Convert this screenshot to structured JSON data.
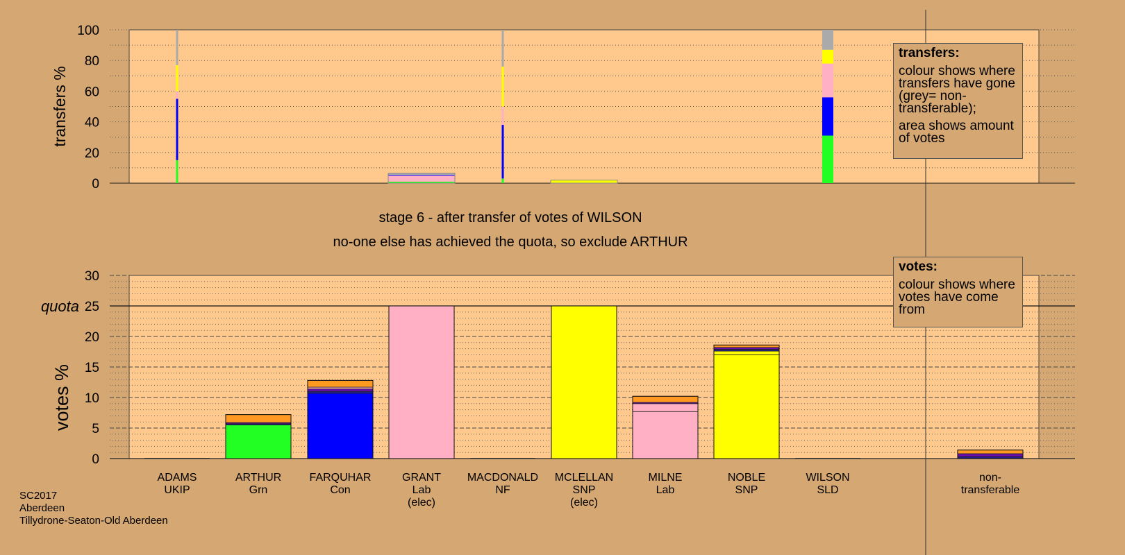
{
  "stage_caption": "stage 6 - after transfer of votes of WILSON",
  "action_caption": "no-one else has achieved the quota, so exclude ARTHUR",
  "footer": [
    "SC2017",
    "Aberdeen",
    "Tillydrone-Seaton-Old Aberdeen"
  ],
  "transfers_legend": {
    "title": "transfers:",
    "lines": [
      "colour shows where transfers have gone (grey= non-transferable);",
      "area shows amount of votes"
    ]
  },
  "votes_legend": {
    "title": "votes:",
    "lines": [
      "colour shows where votes have come from"
    ]
  },
  "colors": {
    "background": "#d4a773",
    "plot": "#ffc88c",
    "ARTHUR": "#22ff22",
    "FARQUHAR": "#0000ff",
    "GRANT": "#ffb0c4",
    "MCLELLAN": "#ffff00",
    "MILNE": "#ffb0c4",
    "NOBLE": "#ffff00",
    "WILSON": "#ff9922",
    "ADAMS": "#6a0dad",
    "MACDONALD": "#222288",
    "nontransferable": "#aaaaaa"
  },
  "chart_data": [
    {
      "type": "bar",
      "id": "transfers",
      "ylabel": "transfers %",
      "ylim": [
        0,
        100
      ],
      "yticks": [
        0,
        20,
        40,
        60,
        80,
        100
      ],
      "grid": "dotted",
      "bars": [
        {
          "candidate": "ADAMS",
          "width_votes": 0.1,
          "segments": [
            {
              "to": "ARTHUR",
              "color": "#22ff22",
              "value": 15
            },
            {
              "to": "FARQUHAR",
              "color": "#0000ff",
              "value": 40
            },
            {
              "to": "GRANT",
              "color": "#ffb0c4",
              "value": 5
            },
            {
              "to": "MCLELLAN",
              "color": "#ffff00",
              "value": 17
            },
            {
              "to": "nontransferable",
              "color": "#aaaaaa",
              "value": 23
            }
          ]
        },
        {
          "candidate": "GRANT",
          "width_votes": 6,
          "segments": [
            {
              "to": "ARTHUR",
              "color": "#22ff22",
              "value": 1
            },
            {
              "to": "MILNE",
              "color": "#ffb0c4",
              "value": 4
            },
            {
              "to": "FARQUHAR",
              "color": "#0000ff",
              "value": 0.5
            },
            {
              "to": "nontransferable",
              "color": "#aaaaaa",
              "value": 1
            }
          ]
        },
        {
          "candidate": "MACDONALD",
          "width_votes": 0.1,
          "segments": [
            {
              "to": "ARTHUR",
              "color": "#22ff22",
              "value": 3
            },
            {
              "to": "FARQUHAR",
              "color": "#0000ff",
              "value": 35
            },
            {
              "to": "GRANT",
              "color": "#ffb0c4",
              "value": 12
            },
            {
              "to": "MCLELLAN",
              "color": "#ffff00",
              "value": 26
            },
            {
              "to": "nontransferable",
              "color": "#aaaaaa",
              "value": 24
            }
          ]
        },
        {
          "candidate": "MCLELLAN",
          "width_votes": 6,
          "segments": [
            {
              "to": "NOBLE",
              "color": "#ffff00",
              "value": 2
            }
          ]
        },
        {
          "candidate": "WILSON",
          "width_votes": 1,
          "segments": [
            {
              "to": "ARTHUR",
              "color": "#22ff22",
              "value": 31
            },
            {
              "to": "FARQUHAR",
              "color": "#0000ff",
              "value": 25
            },
            {
              "to": "MILNE",
              "color": "#ffb0c4",
              "value": 22
            },
            {
              "to": "NOBLE",
              "color": "#ffff00",
              "value": 9
            },
            {
              "to": "nontransferable",
              "color": "#aaaaaa",
              "value": 13
            }
          ]
        }
      ]
    },
    {
      "type": "bar",
      "id": "votes",
      "ylabel": "votes %",
      "ylim": [
        0,
        30
      ],
      "yticks": [
        0,
        5,
        10,
        15,
        20,
        25,
        30
      ],
      "quota": {
        "label": "quota",
        "value": 25
      },
      "grid": "dashed",
      "categories": [
        {
          "name": "ADAMS",
          "party": "UKIP",
          "elec": ""
        },
        {
          "name": "ARTHUR",
          "party": "Grn",
          "elec": ""
        },
        {
          "name": "FARQUHAR",
          "party": "Con",
          "elec": ""
        },
        {
          "name": "GRANT",
          "party": "Lab",
          "elec": "(elec)"
        },
        {
          "name": "MACDONALD",
          "party": "NF",
          "elec": ""
        },
        {
          "name": "MCLELLAN",
          "party": "SNP",
          "elec": "(elec)"
        },
        {
          "name": "MILNE",
          "party": "Lab",
          "elec": ""
        },
        {
          "name": "NOBLE",
          "party": "SNP",
          "elec": ""
        },
        {
          "name": "WILSON",
          "party": "SLD",
          "elec": ""
        },
        {
          "name": "non-",
          "party": "transferable",
          "elec": ""
        }
      ],
      "stacks": [
        [],
        [
          {
            "from": "ARTHUR",
            "color": "#22ff22",
            "value": 5.5
          },
          {
            "from": "MACDONALD",
            "color": "#222288",
            "value": 0.2
          },
          {
            "from": "ADAMS",
            "color": "#6a0dad",
            "value": 0.2
          },
          {
            "from": "WILSON",
            "color": "#ff9922",
            "value": 1.3
          }
        ],
        [
          {
            "from": "FARQUHAR",
            "color": "#0000ff",
            "value": 10.7
          },
          {
            "from": "MACDONALD",
            "color": "#222288",
            "value": 0.3
          },
          {
            "from": "ADAMS",
            "color": "#6a0dad",
            "value": 0.4
          },
          {
            "from": "GRANT",
            "color": "#ffb0c4",
            "value": 0.3
          },
          {
            "from": "WILSON",
            "color": "#ff9922",
            "value": 1.1
          }
        ],
        [
          {
            "from": "GRANT",
            "color": "#ffb0c4",
            "value": 25
          }
        ],
        [],
        [
          {
            "from": "MCLELLAN",
            "color": "#ffff00",
            "value": 25
          }
        ],
        [
          {
            "from": "MILNE",
            "color": "#ffb0c4",
            "value": 7.7
          },
          {
            "from": "GRANT",
            "color": "#ffb0c4",
            "value": 1.3
          },
          {
            "from": "ADAMS",
            "color": "#6a0dad",
            "value": 0.2
          },
          {
            "from": "WILSON",
            "color": "#ff9922",
            "value": 1.0
          }
        ],
        [
          {
            "from": "NOBLE",
            "color": "#ffff00",
            "value": 17
          },
          {
            "from": "MCLELLAN",
            "color": "#ffff00",
            "value": 0.6
          },
          {
            "from": "MACDONALD",
            "color": "#222288",
            "value": 0.3
          },
          {
            "from": "ADAMS",
            "color": "#6a0dad",
            "value": 0.3
          },
          {
            "from": "WILSON",
            "color": "#ff9922",
            "value": 0.4
          }
        ],
        [],
        [
          {
            "from": "MACDONALD",
            "color": "#222288",
            "value": 0.3
          },
          {
            "from": "ADAMS",
            "color": "#6a0dad",
            "value": 0.5
          },
          {
            "from": "WILSON",
            "color": "#ff9922",
            "value": 0.6
          }
        ]
      ]
    }
  ]
}
